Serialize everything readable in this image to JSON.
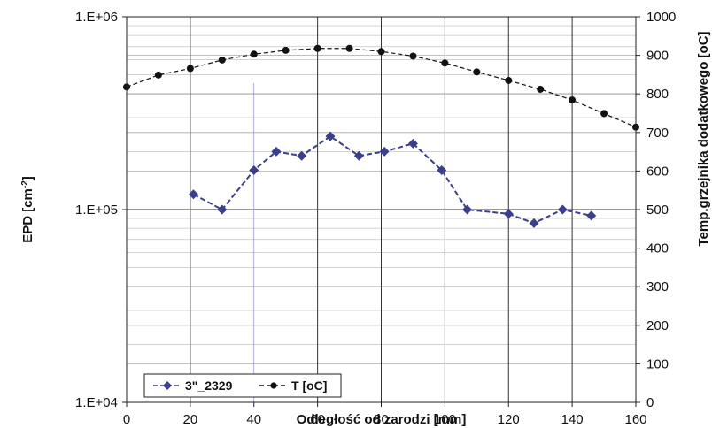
{
  "chart_data": {
    "type": "line",
    "xlabel": "Odległość od zarodzi [mm]",
    "ylabel_left": "EPD [cm",
    "ylabel_left_sup": "-2",
    "ylabel_left_close": "]",
    "ylabel_right": "Temp.grzejnika dodatkowego [oC]",
    "xlim": [
      0,
      160
    ],
    "x_ticks": [
      0,
      20,
      40,
      60,
      80,
      100,
      120,
      140,
      160
    ],
    "x_tick_labels": [
      "0",
      "20",
      "40",
      "60",
      "80",
      "100",
      "120",
      "140",
      "160"
    ],
    "ylim_left": [
      10000,
      1000000
    ],
    "y_left_scale": "log",
    "y_left_ticks": [
      10000,
      100000,
      1000000
    ],
    "y_left_tick_labels": [
      "1.E+04",
      "1.E+05",
      "1.E+06"
    ],
    "ylim_right": [
      0,
      1000
    ],
    "y_right_ticks": [
      0,
      100,
      200,
      300,
      400,
      500,
      600,
      700,
      800,
      900,
      1000
    ],
    "y_right_tick_labels": [
      "0",
      "100",
      "200",
      "300",
      "400",
      "500",
      "600",
      "700",
      "800",
      "900",
      "1000"
    ],
    "grid": true,
    "legend_position": "bottom-left",
    "series": [
      {
        "name": "3\"_2329",
        "axis": "left",
        "marker": "diamond",
        "color": "#3b3f8c",
        "x": [
          21,
          30,
          40,
          47,
          55,
          64,
          73,
          81,
          90,
          99,
          107,
          120,
          128,
          137,
          146
        ],
        "y": [
          120000,
          100000,
          160000,
          200000,
          190000,
          240000,
          190000,
          200000,
          220000,
          160000,
          100000,
          95000,
          85000,
          100000,
          93000
        ]
      },
      {
        "name": "T [oC]",
        "axis": "right",
        "marker": "circle",
        "color": "#111111",
        "x": [
          0,
          10,
          20,
          30,
          40,
          50,
          60,
          70,
          80,
          90,
          100,
          110,
          120,
          130,
          140,
          150,
          160
        ],
        "y": [
          818,
          849,
          866,
          888,
          903,
          913,
          918,
          918,
          910,
          898,
          880,
          857,
          835,
          812,
          784,
          749,
          714
        ]
      }
    ]
  }
}
